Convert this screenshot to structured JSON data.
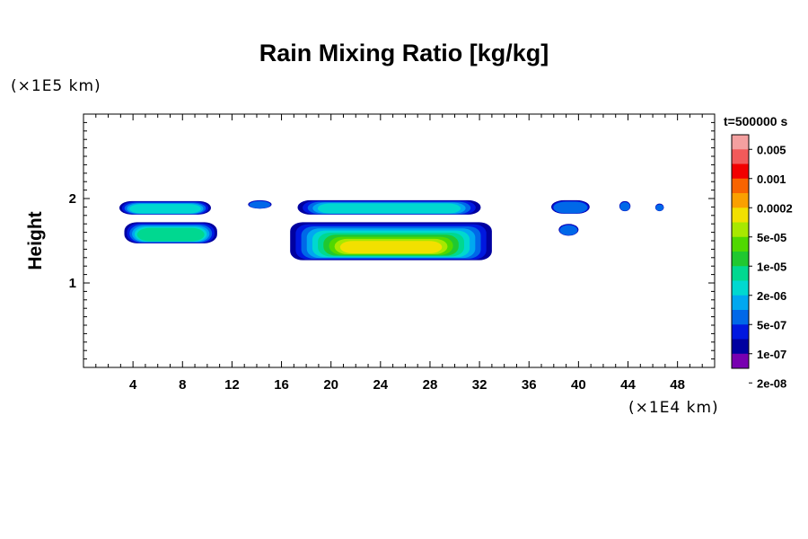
{
  "chart_data": {
    "type": "heatmap",
    "title": "Rain Mixing Ratio [kg/kg]",
    "xlabel": "",
    "ylabel": "Height",
    "x_unit": "(×1E4 km)",
    "y_unit": "(×1E5 km)",
    "time_label": "t=500000 s",
    "xlim": [
      0,
      51
    ],
    "ylim": [
      0,
      3
    ],
    "x_ticks": [
      4,
      8,
      12,
      16,
      20,
      24,
      28,
      32,
      36,
      40,
      44,
      48
    ],
    "y_ticks": [
      1,
      2
    ],
    "colorbar": {
      "labels": [
        "0.005",
        "0.001",
        "0.0002",
        "5e-05",
        "1e-05",
        "2e-06",
        "5e-07",
        "1e-07",
        "2e-08"
      ],
      "colors": [
        "#f4a0a0",
        "#f25a5a",
        "#f20000",
        "#f86400",
        "#faa000",
        "#f2e000",
        "#a8e800",
        "#50d800",
        "#20c830",
        "#00d890",
        "#00d8d0",
        "#00a8f0",
        "#0068e8",
        "#0018e0",
        "#0000a0",
        "#7800b0"
      ]
    },
    "regions": [
      {
        "x": [
          2.9,
          10.3
        ],
        "y": [
          1.81,
          1.97
        ],
        "peak": 0.45
      },
      {
        "x": [
          3.3,
          10.8
        ],
        "y": [
          1.47,
          1.72
        ],
        "peak": 0.6
      },
      {
        "x": [
          13.3,
          15.2
        ],
        "y": [
          1.88,
          1.98
        ],
        "peak": 0.15
      },
      {
        "x": [
          17.3,
          32.1
        ],
        "y": [
          1.81,
          1.98
        ],
        "peak": 0.45
      },
      {
        "x": [
          16.7,
          33.0
        ],
        "y": [
          1.27,
          1.72
        ],
        "peak": 1.0
      },
      {
        "x": [
          37.8,
          40.9
        ],
        "y": [
          1.82,
          1.98
        ],
        "peak": 0.3
      },
      {
        "x": [
          38.4,
          40.0
        ],
        "y": [
          1.56,
          1.7
        ],
        "peak": 0.2
      },
      {
        "x": [
          43.3,
          44.2
        ],
        "y": [
          1.85,
          1.97
        ],
        "peak": 0.1
      },
      {
        "x": [
          46.2,
          46.9
        ],
        "y": [
          1.85,
          1.94
        ],
        "peak": 0.1
      }
    ]
  }
}
